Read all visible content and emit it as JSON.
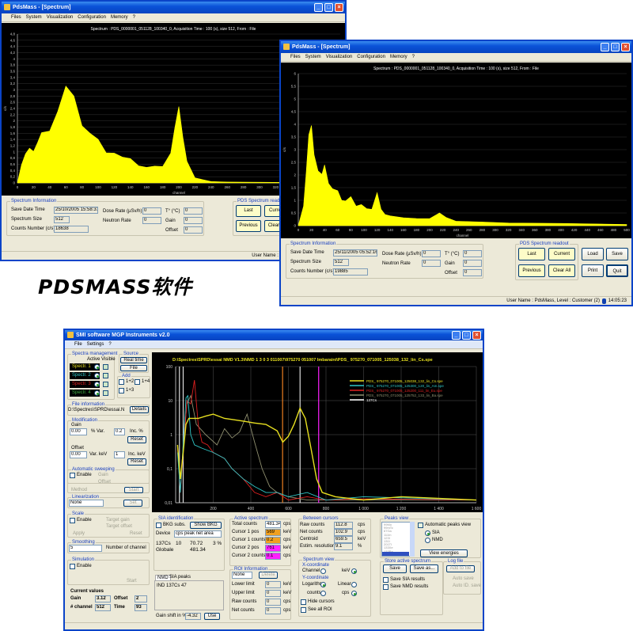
{
  "window1": {
    "title": "PdsMass - [Spectrum]",
    "menu": [
      "Files",
      "System",
      "Visualization",
      "Configuration",
      "Memory",
      "?"
    ],
    "info": {
      "group": "Spectrum Information",
      "save_date_label": "Save Date Time",
      "save_date": "25/10/2005 15:58:31",
      "size_label": "Spectrum Size",
      "size": "512",
      "counts_label": "Counts Number (c/s)",
      "counts": "18638",
      "dose_label": "Dose Rate (µSv/h)",
      "dose": "0",
      "neutron_label": "Neutron Rate",
      "neutron": "0",
      "temp_label": "T° (°C)",
      "temp": "0",
      "gain_label": "Gain",
      "gain": "0",
      "offset_label": "Offset",
      "offset": "0"
    },
    "readout": {
      "group": "PDS Spectrum readout",
      "last": "Last",
      "current": "Current",
      "previous": "Previous",
      "clear_all": "Clear All"
    },
    "status": "User Name : PdsMass, Level : Customer (2)"
  },
  "window2": {
    "title": "PdsMass - [Spectrum]",
    "menu": [
      "Files",
      "System",
      "Visualization",
      "Configuration",
      "Memory",
      "?"
    ],
    "info": {
      "group": "Spectrum Information",
      "save_date_label": "Save Date Time",
      "save_date": "25/11/2005 05:52:16",
      "size_label": "Spectrum Size",
      "size": "512",
      "counts_label": "Counts Number (c/s)",
      "counts": "19885",
      "dose_label": "Dose Rate (µSv/h)",
      "dose": "0",
      "neutron_label": "Neutron Rate",
      "neutron": "0",
      "temp_label": "T° (°C)",
      "temp": "0",
      "gain_label": "Gain",
      "gain": "0",
      "offset_label": "Offset",
      "offset": "0"
    },
    "readout": {
      "group": "PDS Spectrum readout",
      "last": "Last",
      "current": "Current",
      "previous": "Previous",
      "clear_all": "Clear All"
    },
    "buttons": {
      "load": "Load",
      "save": "Save",
      "print": "Print",
      "quit": "Quit"
    },
    "status": "User Name : PdsMass, Level : Customer (2)",
    "time": "14:05:23"
  },
  "caption": "PDSMASS软件",
  "window3": {
    "title": "SMI software MGP Instruments v2.0",
    "menu": [
      "File",
      "Settings",
      "?"
    ],
    "spectra": {
      "group": "Spectra management",
      "header": "Active Visible",
      "items": [
        {
          "label": "Spectr. 1",
          "color": "#e8e020"
        },
        {
          "label": "Spectr. 2",
          "color": "#30c8c8"
        },
        {
          "label": "Spectr. 3",
          "color": "#e02020"
        },
        {
          "label": "Spectr. 4",
          "color": "#40b040"
        }
      ]
    },
    "source": {
      "group": "Source",
      "real_time": "Real time",
      "file": "File"
    },
    "add": {
      "group": "Add",
      "opts": [
        "1+2",
        "1+4",
        "1+3"
      ]
    },
    "file_info": {
      "group": "File information",
      "path": "D:\\Spectres\\SPRD\\essai.N",
      "details": "Details"
    },
    "modification": {
      "group": "Modification",
      "gain_label": "Gain",
      "gain": "0.00",
      "var_pct": "% Var.",
      "inc_val": "0.2",
      "inc_pct": "Inc. %",
      "reset": "Reset",
      "offset_label": "Offset",
      "offset": "0.00",
      "var_kev": "Var. keV",
      "inc_kev_val": "1",
      "inc_kev": "Inc. keV"
    },
    "auto_sweep": {
      "group": "Automatic sweeping",
      "enable": "Enable",
      "gain": "Gain",
      "offset": "Offset",
      "method": "Method",
      "start": "Start"
    },
    "linearization": {
      "group": "Linearization",
      "value": "None",
      "set": "Set"
    },
    "scale": {
      "group": "Scale",
      "enable": "Enable",
      "target_gain": "Target gain",
      "target_offset": "Target offset",
      "apply": "Apply",
      "reset": "Reset"
    },
    "smoothing": {
      "group": "Smoothing",
      "value": "5",
      "label": "Number of channel"
    },
    "simulation": {
      "group": "Simulation",
      "enable": "Enable",
      "start": "Start"
    },
    "current": {
      "title": "Current values",
      "gain_label": "Gain",
      "gain": "3.12",
      "offset_label": "Offset",
      "offset": "2",
      "channel_label": "# channel",
      "channel": "512",
      "time_label": "Time",
      "time": "93"
    },
    "sia": {
      "group": "SIA identification",
      "bkg": "BKG subs.",
      "show_bkg": "Show BKG",
      "device_label": "Device",
      "device": "cps peak net area",
      "results": [
        [
          "137Cs",
          "10",
          "70.72",
          "3 %"
        ],
        [
          "Globale",
          "",
          "481.34",
          ""
        ]
      ]
    },
    "nmd": {
      "tabs": [
        "NMD",
        "SIA peaks"
      ],
      "text": "IND 137Cs 47",
      "gain_shift_label": "Gain shift in %",
      "gain_shift": "-4.32",
      "use": "Use"
    },
    "active": {
      "group": "Active spectrum",
      "rows": [
        {
          "label": "Total counts",
          "value": "481.34",
          "unit": "cps",
          "color": "#ffffff"
        },
        {
          "label": "Cursor 1 pos",
          "value": "569",
          "unit": "keV",
          "color": "#f0a020"
        },
        {
          "label": "Cursor 1 counts",
          "value": "0.2",
          "unit": "cps",
          "color": "#f0a020"
        },
        {
          "label": "Cursor 2 pos",
          "value": "761",
          "unit": "keV",
          "color": "#ff20ff"
        },
        {
          "label": "Cursor 2 counts",
          "value": "0.1",
          "unit": "cps",
          "color": "#ff20ff"
        }
      ]
    },
    "roi": {
      "group": "ROI Information",
      "value": "None",
      "delete": "Delete",
      "rows": [
        {
          "label": "Lower limit",
          "value": "0",
          "unit": "keV"
        },
        {
          "label": "Upper limit",
          "value": "0",
          "unit": "keV"
        },
        {
          "label": "Raw counts",
          "value": "0",
          "unit": "cps"
        },
        {
          "label": "Net counts",
          "value": "0",
          "unit": "cps"
        }
      ]
    },
    "between": {
      "group": "Between cursors",
      "rows": [
        {
          "label": "Raw counts",
          "value": "112.8",
          "unit": "cps"
        },
        {
          "label": "Net counts",
          "value": "102.9",
          "unit": "cps"
        },
        {
          "label": "Centroid",
          "value": "659.5",
          "unit": "keV"
        },
        {
          "label": "Estim. resolution",
          "value": "9.1",
          "unit": "%"
        }
      ]
    },
    "view": {
      "group": "Spectrum view",
      "x_label": "X-coordinate",
      "channel": "Channel",
      "kev": "keV",
      "y_label": "Y-coordinate",
      "log": "Logarithm",
      "linear": "Linear",
      "counts": "counts",
      "cps": "cps",
      "hide": "Hide cursors",
      "see_roi": "See all ROI"
    },
    "peaks": {
      "group": "Peaks view",
      "items": [
        "99Mo",
        "99mTc",
        "67Ga",
        "111In",
        "123I",
        "131I",
        "201Tl",
        "133Xe",
        "133Ba",
        "137Cs"
      ],
      "auto": "Automatic peaks view",
      "sia": "SIA",
      "nmd": "NMD",
      "view_energies": "View energies"
    },
    "store": {
      "group": "Store active spectrum",
      "save": "Save",
      "save_as": "Save as...",
      "save_sia": "Save SIA results",
      "save_nmd": "Save NMD results"
    },
    "log": {
      "group": "Log file",
      "add": "Add to file",
      "auto_save": "Auto save",
      "auto_id": "Auto ID. save"
    }
  },
  "chart_data": [
    {
      "type": "area",
      "title": "Spectrum : PDS_0000001_051128_100340_0, Acquisition Time : 100 (s), size 512, From : File",
      "xlabel": "channel",
      "ylabel": "c/s",
      "xlim": [
        0,
        400
      ],
      "ylim": [
        0,
        4.8
      ],
      "xtick_step": 20,
      "ytick_step": 0.2,
      "grid": true,
      "color": "#ffff00",
      "x": [
        0,
        5,
        10,
        15,
        20,
        25,
        30,
        40,
        50,
        60,
        70,
        80,
        90,
        100,
        110,
        120,
        130,
        140,
        150,
        160,
        170,
        180,
        190,
        195,
        200,
        205,
        210,
        220,
        240,
        260,
        300,
        350,
        400
      ],
      "y": [
        0,
        0.6,
        0.9,
        1.0,
        1.1,
        1.3,
        1.5,
        1.9,
        2.4,
        3.0,
        2.5,
        2.0,
        1.6,
        1.3,
        1.1,
        1.0,
        0.8,
        0.7,
        0.6,
        0.5,
        0.5,
        0.6,
        1.0,
        1.7,
        2.2,
        1.6,
        0.7,
        0.15,
        0.05,
        0.03,
        0.02,
        0.01,
        0.01
      ]
    },
    {
      "type": "area",
      "title": "Spectrum : PDS_0000001_051128_100340_0, Acquisition Time : 100 (s), size 512, From : File",
      "xlabel": "channel",
      "ylabel": "c/s",
      "xlim": [
        0,
        500
      ],
      "ylim": [
        0,
        6
      ],
      "xtick_step": 20,
      "ytick_step": 0.5,
      "grid": true,
      "color": "#ffff00",
      "x": [
        0,
        8,
        12,
        16,
        20,
        24,
        30,
        36,
        40,
        46,
        52,
        60,
        66,
        72,
        80,
        88,
        96,
        104,
        112,
        120,
        126,
        132,
        140,
        160,
        180,
        200,
        215,
        225,
        240,
        280,
        320,
        400,
        500
      ],
      "y": [
        0,
        0.8,
        2.0,
        3.2,
        4.3,
        2.8,
        2.0,
        2.3,
        2.5,
        1.6,
        1.3,
        1.5,
        1.0,
        0.9,
        1.3,
        0.8,
        0.8,
        0.6,
        0.7,
        1.3,
        0.6,
        0.5,
        0.4,
        0.3,
        0.25,
        0.3,
        0.5,
        0.3,
        0.2,
        0.15,
        0.1,
        0.08,
        0.05
      ]
    },
    {
      "type": "line",
      "title": "D:\\Spectres\\SPRD\\essai NMD V1.3\\NMD 1 3 0 3 011007\\975270 051007 Imbaraini\\PDS_ 975270_071005_125038_132_lin_Cs.spe",
      "xlim": [
        0,
        1600
      ],
      "ylim": [
        0.01,
        100
      ],
      "yscale": "log",
      "xticks": [
        200,
        400,
        600,
        800,
        1000,
        1200,
        1400,
        1600
      ],
      "xtick_labels": [
        "200",
        "400",
        "600",
        "800",
        "1 000",
        "1 200",
        "1 400",
        "1 600"
      ],
      "yticks": [
        0.01,
        0.1,
        1,
        10,
        100
      ],
      "ytick_labels": [
        "0,01",
        "0,1",
        "1",
        "10",
        "100"
      ],
      "grid": true,
      "legend": "top-right",
      "cursors": [
        {
          "x": 569,
          "color": "#f08020"
        },
        {
          "x": 761,
          "color": "#ff20ff"
        },
        {
          "x": 20,
          "color": "#dddddd"
        },
        {
          "x": 40,
          "color": "#dddddd"
        },
        {
          "x": 662,
          "color": "#dddddd"
        }
      ],
      "series": [
        {
          "name": "PDS_ 975270_071005_125038_132_lin_Cs.spe",
          "color": "#e8e020",
          "x": [
            10,
            25,
            40,
            55,
            70,
            90,
            120,
            160,
            200,
            260,
            300,
            360,
            420,
            480,
            540,
            570,
            600,
            630,
            662,
            690,
            720,
            750,
            780,
            850,
            1000,
            1200,
            1600
          ],
          "y": [
            0.5,
            0.05,
            0.3,
            2,
            3,
            3,
            3,
            3.5,
            4,
            3,
            2.8,
            2.5,
            2.2,
            2,
            1.3,
            0.6,
            0.9,
            2,
            6,
            3,
            0.4,
            0.05,
            0.02,
            0.015,
            0.012,
            0.015,
            0.012
          ]
        },
        {
          "name": "PDS_ 975270_071005_125300_120_lin_Am.spe",
          "color": "#30c8c8",
          "x": [
            10,
            25,
            40,
            55,
            65,
            80,
            100,
            140,
            200,
            260,
            300,
            360,
            420,
            480,
            540,
            600,
            700,
            800,
            1000,
            1600
          ],
          "y": [
            0.3,
            0.02,
            0.5,
            12,
            14,
            1,
            0.5,
            0.4,
            0.3,
            0.2,
            0.1,
            0.05,
            0.03,
            0.02,
            0.02,
            0.015,
            0.02,
            0.012,
            0.015,
            0.012
          ]
        },
        {
          "name": "PDS_ 975270_071005_125200_111_lin_Eu.spe",
          "color": "#e02020",
          "x": [
            10,
            25,
            40,
            60,
            80,
            100,
            120,
            140,
            170,
            200,
            260,
            300,
            360,
            420,
            480,
            540,
            600,
            700,
            800,
            1000,
            1600
          ],
          "y": [
            0.4,
            0.02,
            0.3,
            10,
            8,
            40,
            2,
            0.6,
            0.5,
            0.3,
            0.2,
            0.1,
            0.05,
            0.02,
            0.015,
            0.02,
            0.012,
            0.015,
            0.012,
            0.013,
            0.012
          ]
        },
        {
          "name": "PDS_ 975270_071005_125752_133_lin_Ba.spe",
          "color": "#909070",
          "x": [
            10,
            25,
            40,
            60,
            80,
            110,
            160,
            220,
            260,
            300,
            340,
            380,
            420,
            460,
            500,
            540,
            600,
            700,
            1000,
            1600
          ],
          "y": [
            0.5,
            0.02,
            0.5,
            8,
            14,
            2,
            1,
            0.5,
            1.5,
            0.8,
            1.2,
            4,
            0.6,
            0.1,
            0.03,
            0.02,
            0.015,
            0.012,
            0.012,
            0.012
          ]
        },
        {
          "name": "137Cs",
          "color": "#ffffff",
          "x": [],
          "y": []
        }
      ]
    }
  ]
}
